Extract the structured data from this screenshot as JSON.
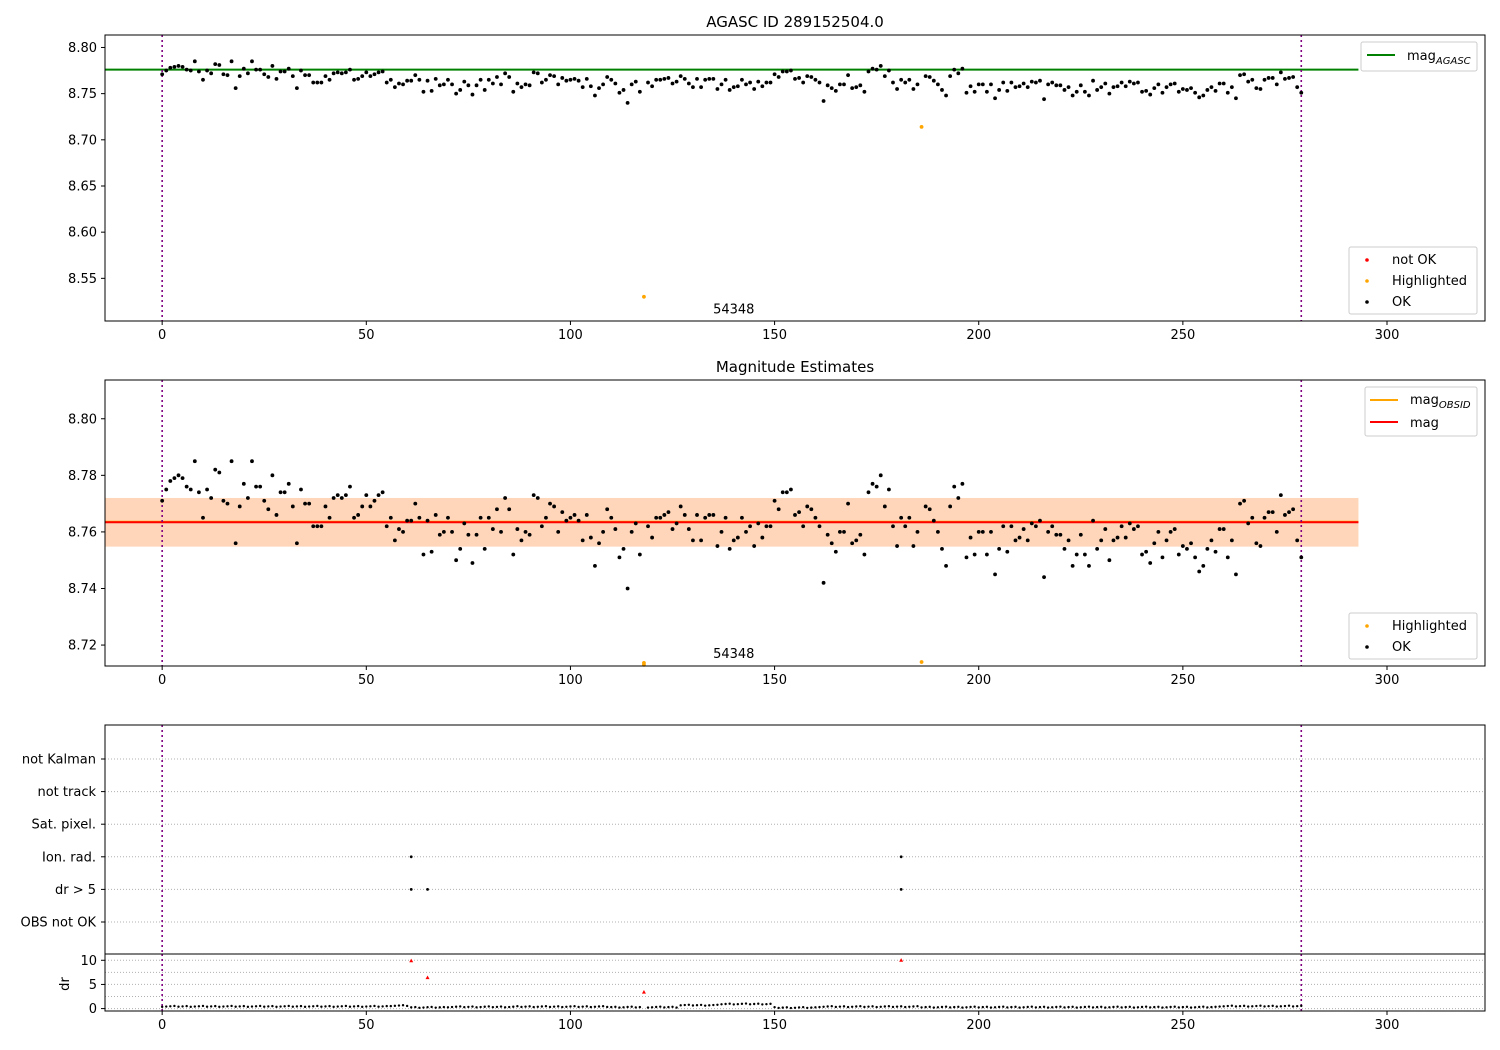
{
  "chart_data": [
    {
      "id": "agasc",
      "type": "scatter",
      "title": "AGASC ID 289152504.0",
      "xlabel": "",
      "ylabel": "",
      "xlim": [
        -14,
        324
      ],
      "ylim": [
        8.5038,
        8.8135
      ],
      "x_ticks": [
        0,
        50,
        100,
        150,
        200,
        250,
        300
      ],
      "y_ticks": [
        8.55,
        8.6,
        8.65,
        8.7,
        8.75,
        8.8
      ],
      "y_tick_labels": [
        "8.55",
        "8.60",
        "8.65",
        "8.70",
        "8.75",
        "8.80"
      ],
      "vlines": [
        0,
        279
      ],
      "hlines": [
        {
          "name": "mag_AGASC",
          "y": 8.776,
          "x_end": 293,
          "color": "#008000"
        }
      ],
      "annotation": {
        "text": "54348",
        "x": 140,
        "y": 8.512
      },
      "legend_lines": {
        "position": "top-right",
        "entries": [
          {
            "label": "mag",
            "sub": "AGASC",
            "color": "#008000"
          }
        ]
      },
      "legend_points": {
        "position": "bottom-right",
        "entries": [
          {
            "label": "not OK",
            "color": "#ff0000"
          },
          {
            "label": "Highlighted",
            "color": "#ffa500"
          },
          {
            "label": "OK",
            "color": "#000000"
          }
        ]
      },
      "highlighted": [
        {
          "x": 118,
          "y": 8.53
        },
        {
          "x": 186,
          "y": 8.714
        }
      ],
      "ok_series": "points_ok"
    },
    {
      "id": "estimates",
      "type": "scatter",
      "title": "Magnitude Estimates",
      "xlabel": "",
      "ylabel": "",
      "xlim": [
        -14,
        324
      ],
      "ylim": [
        8.7126,
        8.8137
      ],
      "x_ticks": [
        0,
        50,
        100,
        150,
        200,
        250,
        300
      ],
      "y_ticks": [
        8.72,
        8.74,
        8.76,
        8.78,
        8.8
      ],
      "y_tick_labels": [
        "8.72",
        "8.74",
        "8.76",
        "8.78",
        "8.80"
      ],
      "vlines": [
        0,
        279
      ],
      "bands": [
        {
          "y0": 8.7548,
          "y1": 8.772,
          "color": "#ffc0cb",
          "opacity": 0.45
        },
        {
          "y0": 8.7548,
          "y1": 8.772,
          "color": "#ffa500",
          "opacity": 0.2
        }
      ],
      "hlines": [
        {
          "name": "mag_OBSID",
          "y": 8.7636,
          "x_end": 293,
          "color": "#ffa500"
        },
        {
          "name": "mag",
          "y": 8.7634,
          "x_end": 293,
          "color": "#ff0000"
        }
      ],
      "annotation": {
        "text": "54348",
        "x": 140,
        "y": 8.7155
      },
      "legend_lines": {
        "position": "top-right",
        "entries": [
          {
            "label": "mag",
            "sub": "OBSID",
            "color": "#ffa500"
          },
          {
            "label": "mag",
            "sub": "",
            "color": "#ff0000"
          }
        ]
      },
      "legend_points": {
        "position": "bottom-right",
        "entries": [
          {
            "label": "Highlighted",
            "color": "#ffa500"
          },
          {
            "label": "OK",
            "color": "#000000"
          }
        ]
      },
      "highlighted": [
        {
          "x": 118,
          "y": 8.7137
        },
        {
          "x": 118,
          "y": 8.713
        },
        {
          "x": 186,
          "y": 8.714
        }
      ],
      "ok_series": "points_ok"
    },
    {
      "id": "flags",
      "type": "scatter",
      "title": "",
      "xlim": [
        -14,
        324
      ],
      "vlines": [
        0,
        279
      ],
      "categories": [
        "OBS not OK",
        "dr > 5",
        "Ion. rad.",
        "Sat. pixel.",
        "not track",
        "not Kalman"
      ],
      "points": [
        {
          "x": 61,
          "category": "Ion. rad."
        },
        {
          "x": 181,
          "category": "Ion. rad."
        },
        {
          "x": 61,
          "category": "dr > 5"
        },
        {
          "x": 65,
          "category": "dr > 5"
        },
        {
          "x": 181,
          "category": "dr > 5"
        }
      ]
    },
    {
      "id": "dr",
      "type": "scatter",
      "title": "",
      "ylabel": "dr",
      "xlim": [
        -14,
        324
      ],
      "ylim": [
        -0.5,
        11.3
      ],
      "x_ticks": [
        0,
        50,
        100,
        150,
        200,
        250,
        300
      ],
      "y_ticks": [
        0,
        5,
        10
      ],
      "y_tick_labels": [
        "0",
        "5",
        "10"
      ],
      "vlines": [
        0,
        279
      ],
      "red_points": [
        {
          "x": 61,
          "y": 9.9
        },
        {
          "x": 65,
          "y": 6.4
        },
        {
          "x": 118,
          "y": 3.4
        },
        {
          "x": 181,
          "y": 10.0
        }
      ],
      "levels": [
        {
          "x0": 0,
          "x1": 55,
          "v": 0.45
        },
        {
          "x0": 56,
          "x1": 60,
          "v": 0.6
        },
        {
          "x0": 61,
          "x1": 69,
          "v": 0.25
        },
        {
          "x0": 70,
          "x1": 86,
          "v": 0.35
        },
        {
          "x0": 87,
          "x1": 109,
          "v": 0.4
        },
        {
          "x0": 110,
          "x1": 126,
          "v": 0.3
        },
        {
          "x0": 127,
          "x1": 136,
          "v": 0.7
        },
        {
          "x0": 137,
          "x1": 149,
          "v": 0.95
        },
        {
          "x0": 150,
          "x1": 160,
          "v": 0.2
        },
        {
          "x0": 161,
          "x1": 185,
          "v": 0.4
        },
        {
          "x0": 186,
          "x1": 258,
          "v": 0.3
        },
        {
          "x0": 259,
          "x1": 279,
          "v": 0.5
        }
      ]
    }
  ],
  "points_ok": [
    [
      0,
      8.771
    ],
    [
      1,
      8.775
    ],
    [
      2,
      8.778
    ],
    [
      3,
      8.779
    ],
    [
      4,
      8.78
    ],
    [
      5,
      8.779
    ],
    [
      6,
      8.776
    ],
    [
      7,
      8.775
    ],
    [
      8,
      8.785
    ],
    [
      9,
      8.774
    ],
    [
      10,
      8.765
    ],
    [
      11,
      8.775
    ],
    [
      12,
      8.772
    ],
    [
      13,
      8.782
    ],
    [
      14,
      8.781
    ],
    [
      15,
      8.771
    ],
    [
      16,
      8.77
    ],
    [
      17,
      8.785
    ],
    [
      18,
      8.756
    ],
    [
      19,
      8.769
    ],
    [
      20,
      8.777
    ],
    [
      21,
      8.772
    ],
    [
      22,
      8.785
    ],
    [
      23,
      8.776
    ],
    [
      24,
      8.776
    ],
    [
      25,
      8.771
    ],
    [
      26,
      8.768
    ],
    [
      27,
      8.78
    ],
    [
      28,
      8.766
    ],
    [
      29,
      8.774
    ],
    [
      30,
      8.774
    ],
    [
      31,
      8.777
    ],
    [
      32,
      8.769
    ],
    [
      33,
      8.756
    ],
    [
      34,
      8.775
    ],
    [
      35,
      8.77
    ],
    [
      36,
      8.77
    ],
    [
      37,
      8.762
    ],
    [
      38,
      8.762
    ],
    [
      39,
      8.762
    ],
    [
      40,
      8.769
    ],
    [
      41,
      8.765
    ],
    [
      42,
      8.772
    ],
    [
      43,
      8.773
    ],
    [
      44,
      8.772
    ],
    [
      45,
      8.773
    ],
    [
      46,
      8.776
    ],
    [
      47,
      8.765
    ],
    [
      48,
      8.766
    ],
    [
      49,
      8.769
    ],
    [
      50,
      8.773
    ],
    [
      51,
      8.769
    ],
    [
      52,
      8.771
    ],
    [
      53,
      8.773
    ],
    [
      54,
      8.774
    ],
    [
      55,
      8.762
    ],
    [
      56,
      8.765
    ],
    [
      57,
      8.757
    ],
    [
      58,
      8.761
    ],
    [
      59,
      8.76
    ],
    [
      60,
      8.764
    ],
    [
      61,
      8.764
    ],
    [
      62,
      8.77
    ],
    [
      63,
      8.765
    ],
    [
      64,
      8.752
    ],
    [
      65,
      8.764
    ],
    [
      66,
      8.753
    ],
    [
      67,
      8.766
    ],
    [
      68,
      8.759
    ],
    [
      69,
      8.76
    ],
    [
      70,
      8.765
    ],
    [
      71,
      8.76
    ],
    [
      72,
      8.75
    ],
    [
      73,
      8.754
    ],
    [
      74,
      8.763
    ],
    [
      75,
      8.759
    ],
    [
      76,
      8.749
    ],
    [
      77,
      8.759
    ],
    [
      78,
      8.765
    ],
    [
      79,
      8.754
    ],
    [
      80,
      8.765
    ],
    [
      81,
      8.761
    ],
    [
      82,
      8.768
    ],
    [
      83,
      8.76
    ],
    [
      84,
      8.772
    ],
    [
      85,
      8.768
    ],
    [
      86,
      8.752
    ],
    [
      87,
      8.761
    ],
    [
      88,
      8.757
    ],
    [
      89,
      8.76
    ],
    [
      90,
      8.759
    ],
    [
      91,
      8.773
    ],
    [
      92,
      8.772
    ],
    [
      93,
      8.762
    ],
    [
      94,
      8.765
    ],
    [
      95,
      8.77
    ],
    [
      96,
      8.769
    ],
    [
      97,
      8.76
    ],
    [
      98,
      8.767
    ],
    [
      99,
      8.764
    ],
    [
      100,
      8.765
    ],
    [
      101,
      8.766
    ],
    [
      102,
      8.764
    ],
    [
      103,
      8.757
    ],
    [
      104,
      8.766
    ],
    [
      105,
      8.758
    ],
    [
      106,
      8.748
    ],
    [
      107,
      8.756
    ],
    [
      108,
      8.76
    ],
    [
      109,
      8.768
    ],
    [
      110,
      8.765
    ],
    [
      111,
      8.761
    ],
    [
      112,
      8.751
    ],
    [
      113,
      8.754
    ],
    [
      114,
      8.74
    ],
    [
      115,
      8.76
    ],
    [
      116,
      8.763
    ],
    [
      117,
      8.752
    ],
    [
      119,
      8.762
    ],
    [
      120,
      8.758
    ],
    [
      121,
      8.765
    ],
    [
      122,
      8.765
    ],
    [
      123,
      8.766
    ],
    [
      124,
      8.767
    ],
    [
      125,
      8.761
    ],
    [
      126,
      8.763
    ],
    [
      127,
      8.769
    ],
    [
      128,
      8.766
    ],
    [
      129,
      8.761
    ],
    [
      130,
      8.757
    ],
    [
      131,
      8.766
    ],
    [
      132,
      8.757
    ],
    [
      133,
      8.765
    ],
    [
      134,
      8.766
    ],
    [
      135,
      8.766
    ],
    [
      136,
      8.755
    ],
    [
      137,
      8.76
    ],
    [
      138,
      8.765
    ],
    [
      139,
      8.754
    ],
    [
      140,
      8.757
    ],
    [
      141,
      8.758
    ],
    [
      142,
      8.765
    ],
    [
      143,
      8.76
    ],
    [
      144,
      8.762
    ],
    [
      145,
      8.755
    ],
    [
      146,
      8.763
    ],
    [
      147,
      8.758
    ],
    [
      148,
      8.762
    ],
    [
      149,
      8.762
    ],
    [
      150,
      8.771
    ],
    [
      151,
      8.768
    ],
    [
      152,
      8.774
    ],
    [
      153,
      8.774
    ],
    [
      154,
      8.775
    ],
    [
      155,
      8.766
    ],
    [
      156,
      8.767
    ],
    [
      157,
      8.762
    ],
    [
      158,
      8.769
    ],
    [
      159,
      8.768
    ],
    [
      160,
      8.765
    ],
    [
      161,
      8.762
    ],
    [
      162,
      8.742
    ],
    [
      163,
      8.759
    ],
    [
      164,
      8.756
    ],
    [
      165,
      8.753
    ],
    [
      166,
      8.76
    ],
    [
      167,
      8.76
    ],
    [
      168,
      8.77
    ],
    [
      169,
      8.756
    ],
    [
      170,
      8.757
    ],
    [
      171,
      8.759
    ],
    [
      172,
      8.752
    ],
    [
      173,
      8.774
    ],
    [
      174,
      8.777
    ],
    [
      175,
      8.776
    ],
    [
      176,
      8.78
    ],
    [
      177,
      8.769
    ],
    [
      178,
      8.775
    ],
    [
      179,
      8.762
    ],
    [
      180,
      8.755
    ],
    [
      181,
      8.765
    ],
    [
      182,
      8.762
    ],
    [
      183,
      8.765
    ],
    [
      184,
      8.755
    ],
    [
      185,
      8.76
    ],
    [
      187,
      8.769
    ],
    [
      188,
      8.768
    ],
    [
      189,
      8.764
    ],
    [
      190,
      8.76
    ],
    [
      191,
      8.754
    ],
    [
      192,
      8.748
    ],
    [
      193,
      8.769
    ],
    [
      194,
      8.776
    ],
    [
      195,
      8.772
    ],
    [
      196,
      8.777
    ],
    [
      197,
      8.751
    ],
    [
      198,
      8.758
    ],
    [
      199,
      8.752
    ],
    [
      200,
      8.76
    ],
    [
      201,
      8.76
    ],
    [
      202,
      8.752
    ],
    [
      203,
      8.76
    ],
    [
      204,
      8.745
    ],
    [
      205,
      8.754
    ],
    [
      206,
      8.762
    ],
    [
      207,
      8.753
    ],
    [
      208,
      8.762
    ],
    [
      209,
      8.757
    ],
    [
      210,
      8.758
    ],
    [
      211,
      8.761
    ],
    [
      212,
      8.757
    ],
    [
      213,
      8.763
    ],
    [
      214,
      8.762
    ],
    [
      215,
      8.764
    ],
    [
      216,
      8.744
    ],
    [
      217,
      8.76
    ],
    [
      218,
      8.762
    ],
    [
      219,
      8.759
    ],
    [
      220,
      8.759
    ],
    [
      221,
      8.754
    ],
    [
      222,
      8.757
    ],
    [
      223,
      8.748
    ],
    [
      224,
      8.752
    ],
    [
      225,
      8.759
    ],
    [
      226,
      8.752
    ],
    [
      227,
      8.748
    ],
    [
      228,
      8.764
    ],
    [
      229,
      8.754
    ],
    [
      230,
      8.757
    ],
    [
      231,
      8.761
    ],
    [
      232,
      8.75
    ],
    [
      233,
      8.757
    ],
    [
      234,
      8.758
    ],
    [
      235,
      8.762
    ],
    [
      236,
      8.758
    ],
    [
      237,
      8.763
    ],
    [
      238,
      8.761
    ],
    [
      239,
      8.762
    ],
    [
      240,
      8.752
    ],
    [
      241,
      8.753
    ],
    [
      242,
      8.749
    ],
    [
      243,
      8.756
    ],
    [
      244,
      8.76
    ],
    [
      245,
      8.751
    ],
    [
      246,
      8.757
    ],
    [
      247,
      8.76
    ],
    [
      248,
      8.761
    ],
    [
      249,
      8.752
    ],
    [
      250,
      8.755
    ],
    [
      251,
      8.754
    ],
    [
      252,
      8.756
    ],
    [
      253,
      8.751
    ],
    [
      254,
      8.746
    ],
    [
      255,
      8.748
    ],
    [
      256,
      8.754
    ],
    [
      257,
      8.757
    ],
    [
      258,
      8.753
    ],
    [
      259,
      8.761
    ],
    [
      260,
      8.761
    ],
    [
      261,
      8.751
    ],
    [
      262,
      8.757
    ],
    [
      263,
      8.745
    ],
    [
      264,
      8.77
    ],
    [
      265,
      8.771
    ],
    [
      266,
      8.763
    ],
    [
      267,
      8.765
    ],
    [
      268,
      8.756
    ],
    [
      269,
      8.755
    ],
    [
      270,
      8.765
    ],
    [
      271,
      8.767
    ],
    [
      272,
      8.767
    ],
    [
      273,
      8.76
    ],
    [
      274,
      8.773
    ],
    [
      275,
      8.766
    ],
    [
      276,
      8.767
    ],
    [
      277,
      8.768
    ],
    [
      278,
      8.757
    ],
    [
      279,
      8.751
    ]
  ]
}
